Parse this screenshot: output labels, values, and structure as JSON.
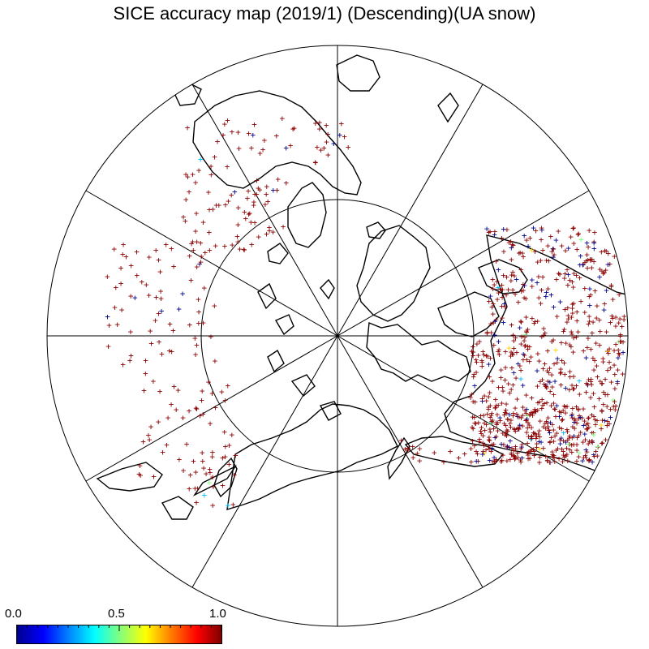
{
  "title": "SICE accuracy map (2019/1) (Descending)(UA snow)",
  "colorbar": {
    "min_label": "0.0",
    "mid_label": "0.5",
    "max_label": "1.0",
    "stops": [
      "#00008f",
      "#0000ff",
      "#0080ff",
      "#00ffff",
      "#80ff80",
      "#ffff00",
      "#ff8000",
      "#ff0000",
      "#800000"
    ]
  },
  "map": {
    "projection": "north-polar-stereographic",
    "meridian_spacing_deg": 30,
    "inner_parallel_drawn": true,
    "marker_symbol": "+",
    "marker_colors": {
      "high": "#8b0000",
      "low": "#00008b",
      "mid_low": "#00bfff",
      "mid": "#7fff7f",
      "mid_high": "#ffd700"
    }
  }
}
